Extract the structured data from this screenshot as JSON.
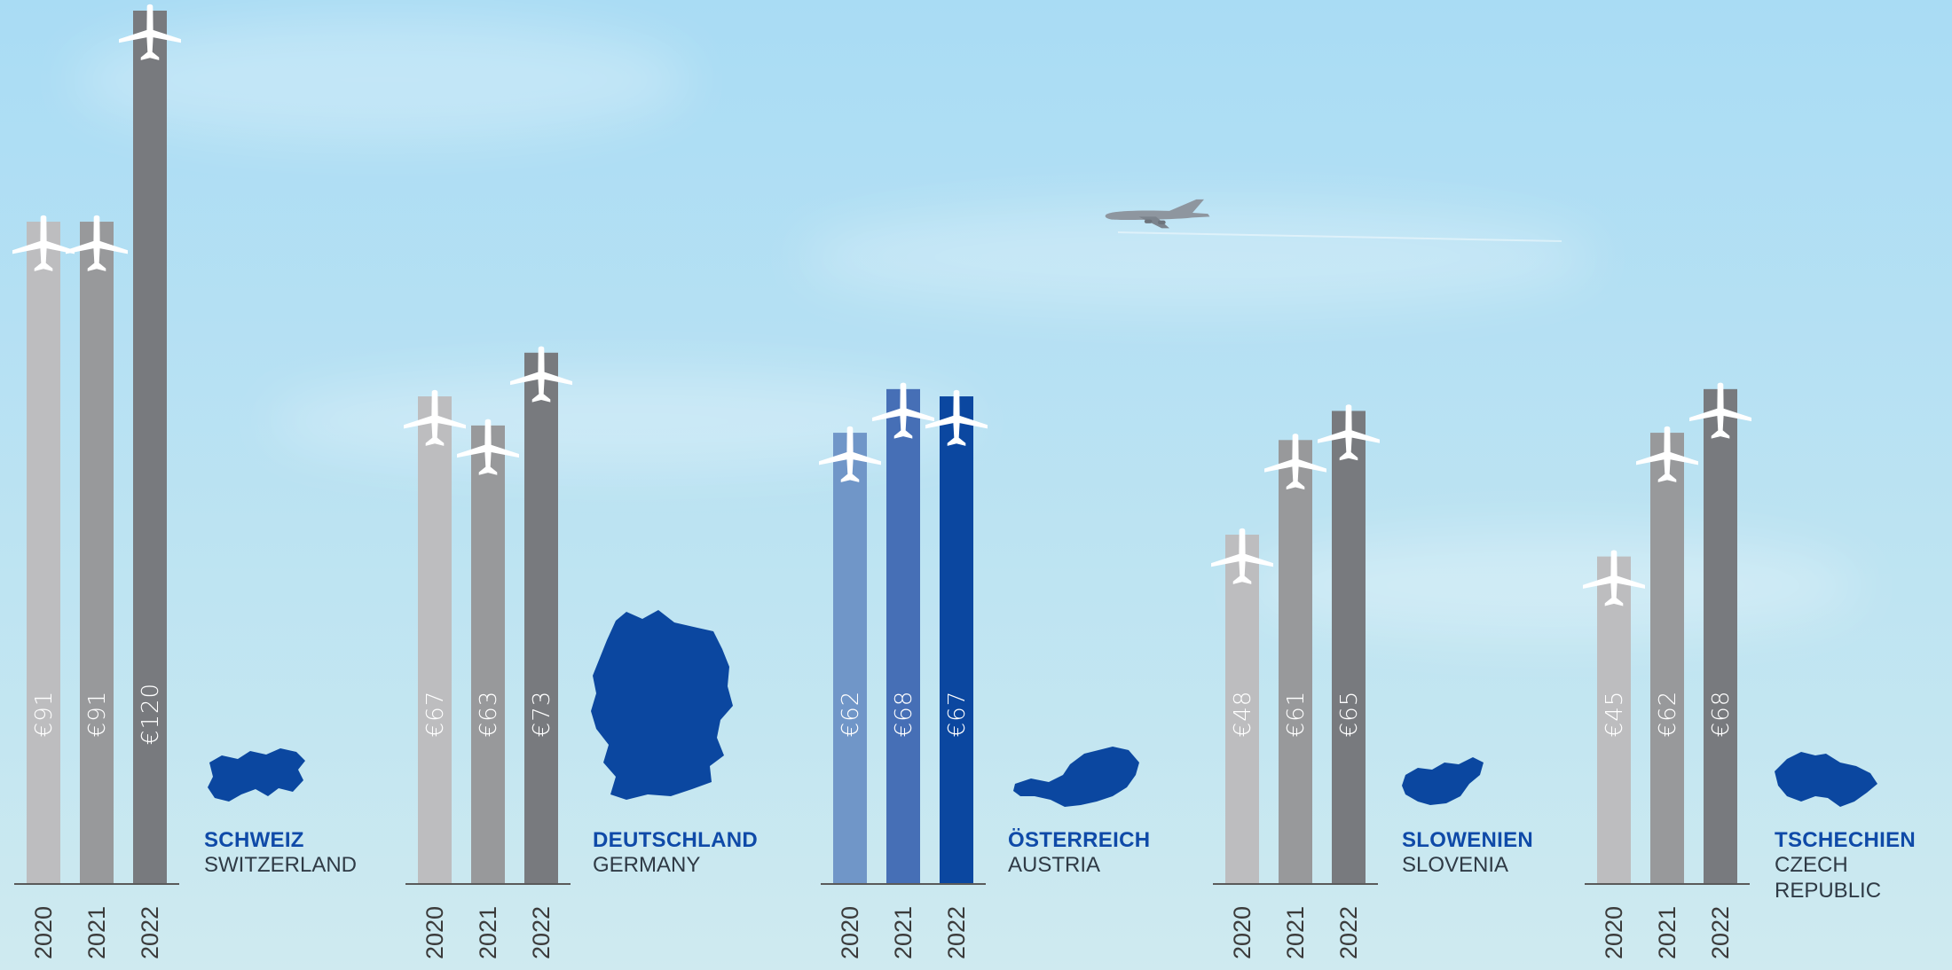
{
  "colors": {
    "bar_2020": "#bdbdbf",
    "bar_2021": "#98999b",
    "bar_2022": "#787a7e",
    "at_2020": "#7096c8",
    "at_2021": "#466fb6",
    "at_2022": "#0b47a0",
    "map": "#0b47a0",
    "baseline": "#5a5a5a"
  },
  "icons": [
    "airplane-icon",
    "airliner-photo",
    "switzerland-map",
    "germany-map",
    "austria-map",
    "slovenia-map",
    "czech-republic-map"
  ],
  "chart_data": {
    "type": "bar",
    "categories": [
      "2020",
      "2021",
      "2022"
    ],
    "value_prefix": "€",
    "ylim": [
      0,
      120
    ],
    "groups": [
      {
        "name_de": "SCHWEIZ",
        "name_en": "SWITZERLAND",
        "values": [
          91,
          91,
          120
        ],
        "labels": [
          "€91",
          "€91",
          "€120"
        ],
        "highlight": false
      },
      {
        "name_de": "DEUTSCHLAND",
        "name_en": "GERMANY",
        "values": [
          67,
          63,
          73
        ],
        "labels": [
          "€67",
          "€63",
          "€73"
        ],
        "highlight": false
      },
      {
        "name_de": "ÖSTERREICH",
        "name_en": "AUSTRIA",
        "values": [
          62,
          68,
          67
        ],
        "labels": [
          "€62",
          "€68",
          "€67"
        ],
        "highlight": true
      },
      {
        "name_de": "SLOWENIEN",
        "name_en": "SLOVENIA",
        "values": [
          48,
          61,
          65
        ],
        "labels": [
          "€48",
          "€61",
          "€65"
        ],
        "highlight": false
      },
      {
        "name_de": "TSCHECHIEN",
        "name_en": "CZECH REPUBLIC",
        "values": [
          45,
          62,
          68
        ],
        "labels": [
          "€45",
          "€62",
          "€68"
        ],
        "highlight": false
      }
    ]
  }
}
